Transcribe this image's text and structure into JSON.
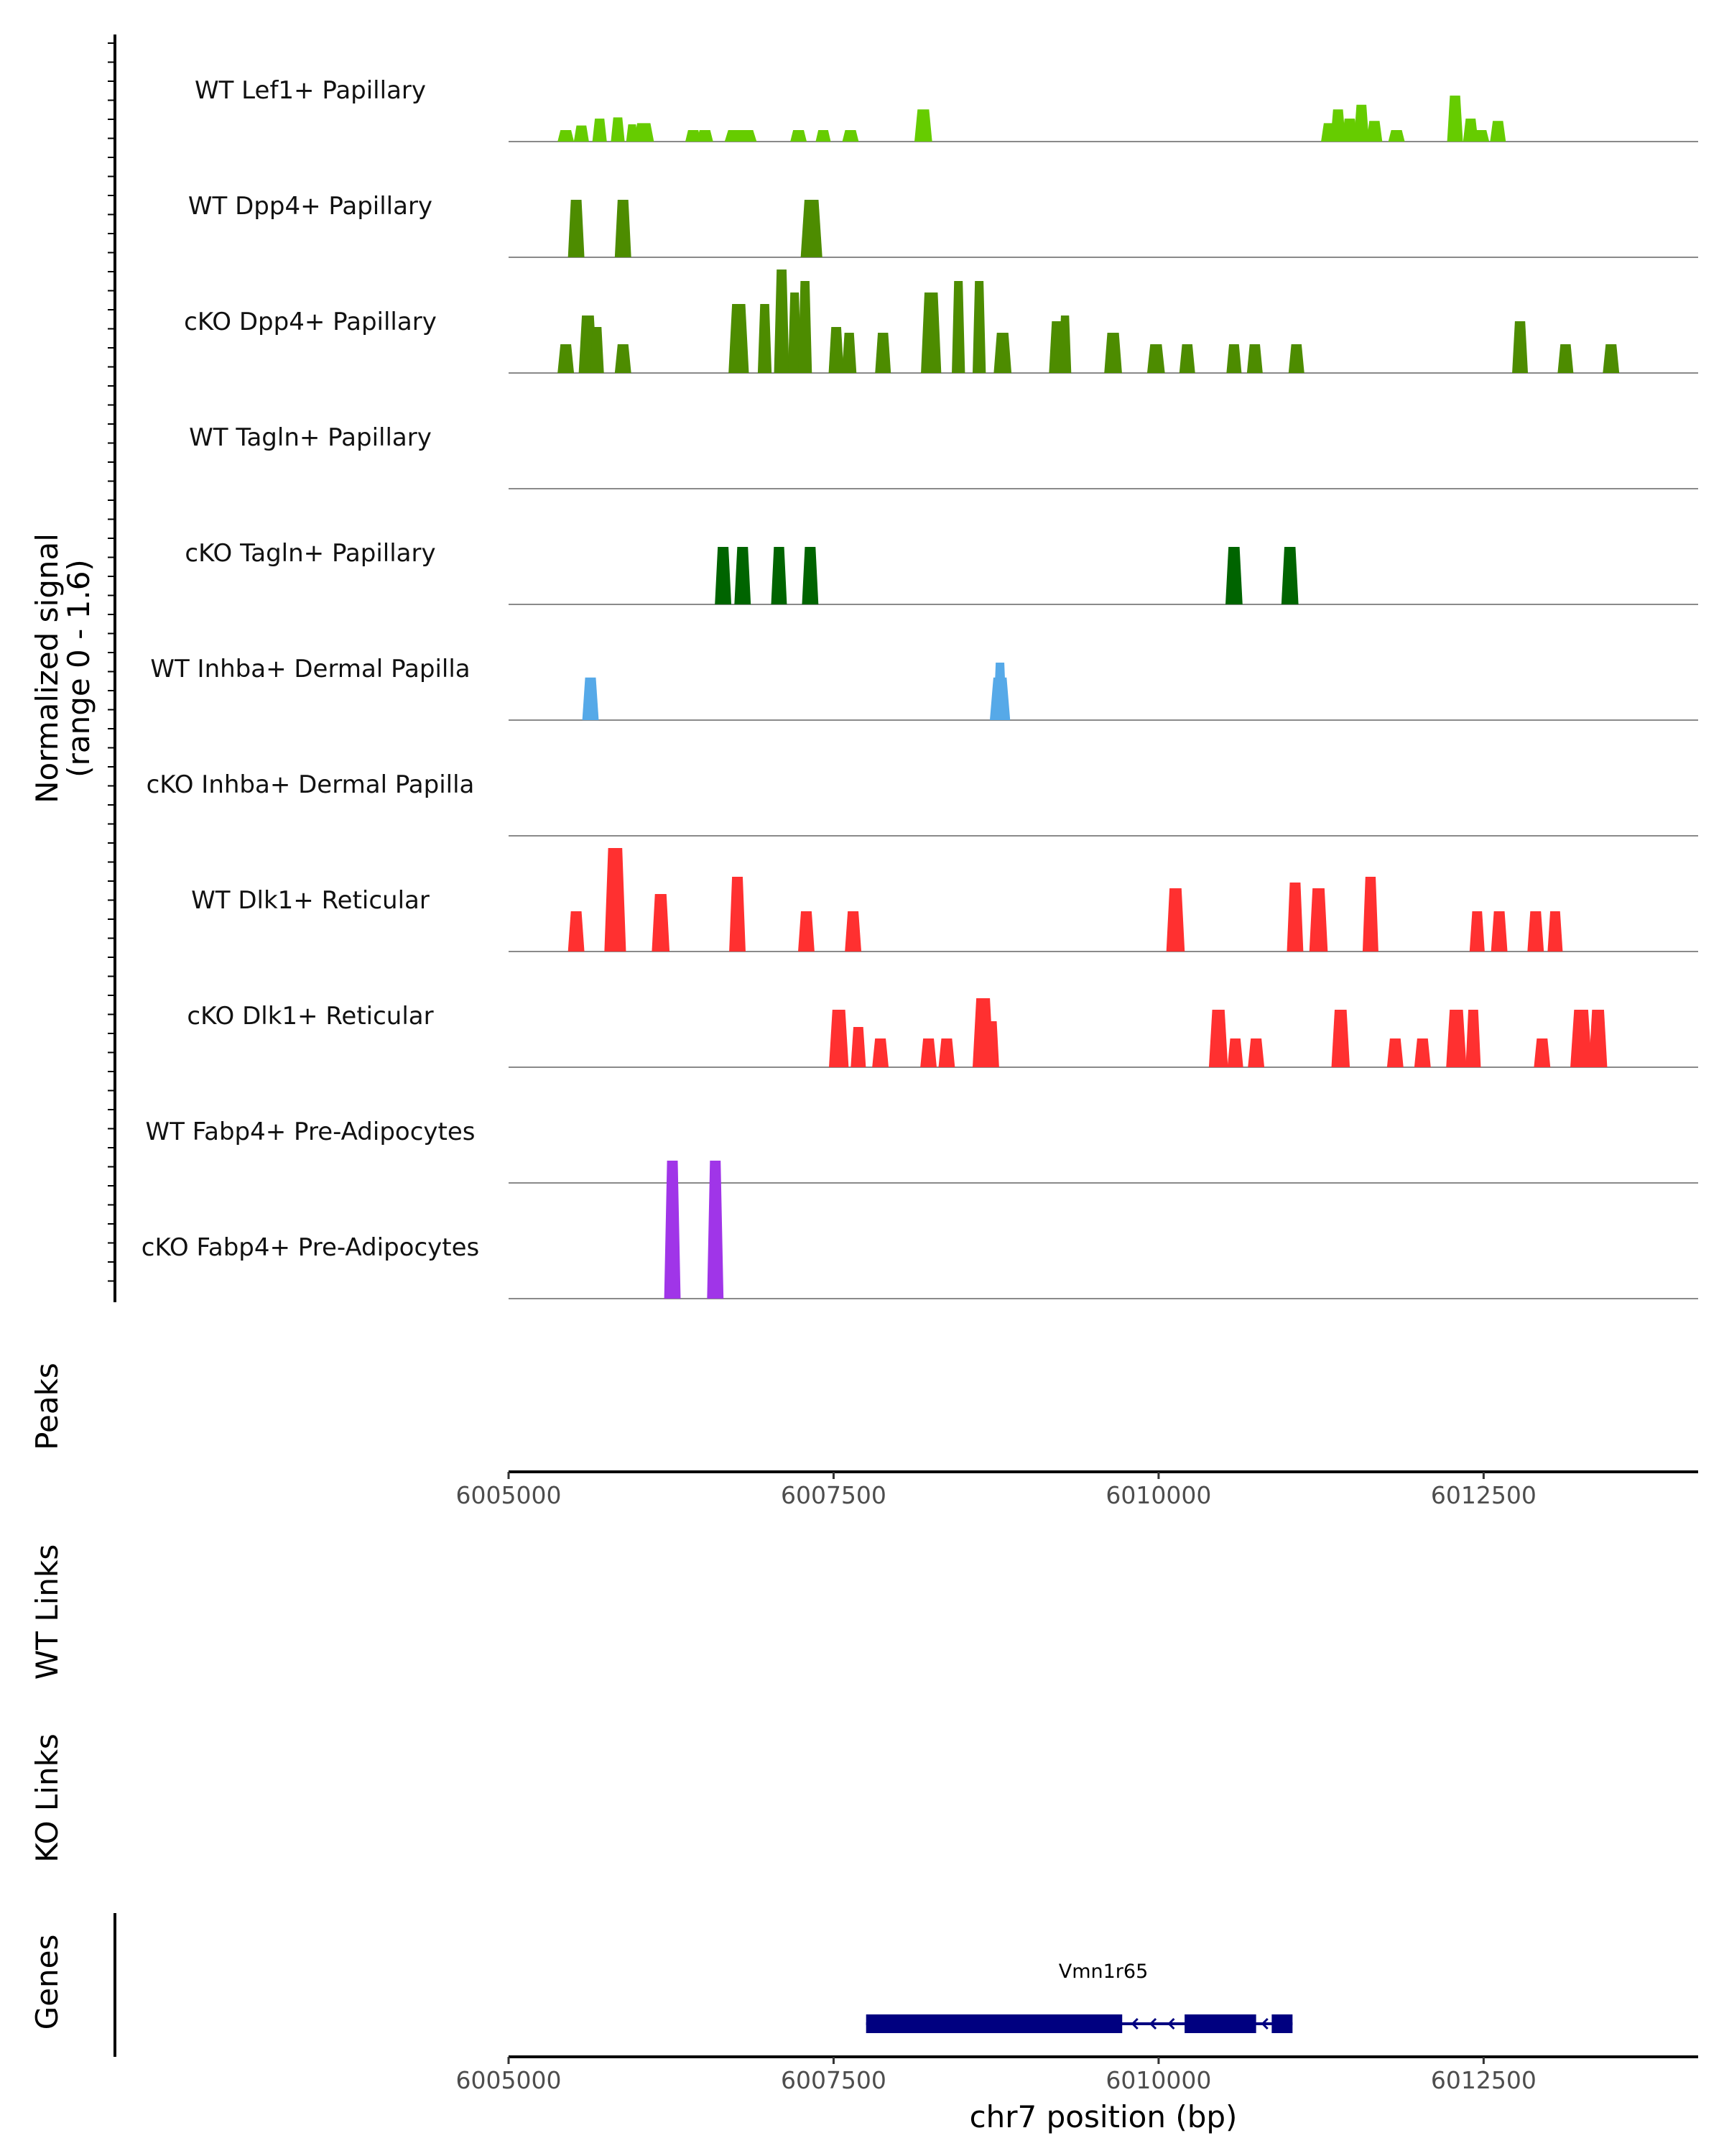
{
  "chart_data": {
    "type": "area",
    "title": "",
    "y_axis_label_line1": "Normalized signal",
    "y_axis_label_line2": "(range 0 - 1.6)",
    "y_range": [
      0,
      1.6
    ],
    "xlabel": "chr7 position (bp)",
    "x_range": [
      6005000,
      6014150
    ],
    "x_ticks": [
      6005000,
      6007500,
      6010000,
      6012500
    ],
    "x_tick_labels": [
      "6005000",
      "6007500",
      "6010000",
      "6012500"
    ],
    "panel_labels": {
      "peaks": "Peaks",
      "wt_links": "WT Links",
      "ko_links": "KO Links",
      "genes": "Genes"
    },
    "gene": {
      "name": "Vmn1r65",
      "color": "#000080",
      "strand": "-",
      "exons": [
        [
          6007750,
          6009720
        ],
        [
          6010200,
          6010750
        ],
        [
          6010870,
          6011030
        ]
      ],
      "intron_arrows": [
        6009800,
        6009940,
        6010080,
        6010800
      ]
    },
    "series": [
      {
        "name": "WT Lef1+ Papillary",
        "color": "#66CC00",
        "peaks": [
          [
            6005440,
            0.6,
            0.1
          ],
          [
            6005560,
            0.5,
            0.14
          ],
          [
            6005700,
            0.45,
            0.2
          ],
          [
            6005840,
            0.4,
            0.21
          ],
          [
            6005950,
            0.25,
            0.15
          ],
          [
            6006040,
            0.9,
            0.16
          ],
          [
            6006420,
            0.55,
            0.1
          ],
          [
            6006510,
            0.6,
            0.1
          ],
          [
            6006740,
            0.9,
            0.1
          ],
          [
            6006830,
            0.9,
            0.1
          ],
          [
            6007230,
            0.6,
            0.1
          ],
          [
            6007420,
            0.5,
            0.1
          ],
          [
            6007630,
            0.6,
            0.1
          ],
          [
            6008190,
            0.7,
            0.28
          ],
          [
            6011310,
            0.55,
            0.16
          ],
          [
            6011380,
            0.5,
            0.28
          ],
          [
            6011470,
            0.55,
            0.2
          ],
          [
            6011560,
            0.5,
            0.32
          ],
          [
            6011660,
            0.55,
            0.18
          ],
          [
            6011830,
            0.6,
            0.1
          ],
          [
            6012280,
            0.55,
            0.4
          ],
          [
            6012400,
            0.5,
            0.2
          ],
          [
            6012480,
            0.6,
            0.1
          ],
          [
            6012610,
            0.55,
            0.18
          ]
        ]
      },
      {
        "name": "WT Dpp4+ Papillary",
        "color": "#4D8C00",
        "peaks": [
          [
            6005520,
            0.6,
            0.5
          ],
          [
            6005880,
            0.6,
            0.5
          ],
          [
            6007330,
            1.0,
            0.5
          ]
        ]
      },
      {
        "name": "cKO Dpp4+ Papillary",
        "color": "#4D8C00",
        "peaks": [
          [
            6005440,
            0.6,
            0.25
          ],
          [
            6005610,
            0.75,
            0.5
          ],
          [
            6005680,
            0.4,
            0.4
          ],
          [
            6005880,
            0.6,
            0.25
          ],
          [
            6006770,
            0.9,
            0.6
          ],
          [
            6006970,
            0.4,
            0.6
          ],
          [
            6007100,
            0.5,
            0.9
          ],
          [
            6007200,
            0.35,
            0.7
          ],
          [
            6007280,
            0.4,
            0.8
          ],
          [
            6007520,
            0.5,
            0.4
          ],
          [
            6007620,
            0.45,
            0.35
          ],
          [
            6007880,
            0.55,
            0.35
          ],
          [
            6008250,
            0.9,
            0.7
          ],
          [
            6008460,
            0.35,
            0.8
          ],
          [
            6008620,
            0.35,
            0.8
          ],
          [
            6008800,
            0.7,
            0.35
          ],
          [
            6009220,
            0.6,
            0.45
          ],
          [
            6009280,
            0.3,
            0.5
          ],
          [
            6009650,
            0.7,
            0.35
          ],
          [
            6009980,
            0.7,
            0.25
          ],
          [
            6010220,
            0.55,
            0.25
          ],
          [
            6010580,
            0.5,
            0.25
          ],
          [
            6010740,
            0.55,
            0.25
          ],
          [
            6011060,
            0.55,
            0.25
          ],
          [
            6012780,
            0.55,
            0.45
          ],
          [
            6013130,
            0.55,
            0.25
          ],
          [
            6013480,
            0.6,
            0.25
          ]
        ]
      },
      {
        "name": "WT Tagln+ Papillary",
        "color": "#006400",
        "peaks": []
      },
      {
        "name": "cKO Tagln+ Papillary",
        "color": "#006400",
        "peaks": [
          [
            6006650,
            0.6,
            0.5
          ],
          [
            6006800,
            0.6,
            0.5
          ],
          [
            6007080,
            0.55,
            0.5
          ],
          [
            6007320,
            0.6,
            0.5
          ],
          [
            6010580,
            0.65,
            0.5
          ],
          [
            6011010,
            0.65,
            0.5
          ]
        ]
      },
      {
        "name": "WT Inhba+ Dermal Papilla",
        "color": "#56A9E8",
        "peaks": [
          [
            6005630,
            0.6,
            0.37
          ],
          [
            6008780,
            0.9,
            0.37
          ],
          [
            6008780,
            0.35,
            0.5
          ]
        ]
      },
      {
        "name": "cKO Inhba+ Dermal Papilla",
        "color": "#56A9E8",
        "peaks": []
      },
      {
        "name": "WT Dlk1+ Reticular",
        "color": "#FF3030",
        "peaks": [
          [
            6005520,
            0.6,
            0.35
          ],
          [
            6005820,
            1.0,
            0.9
          ],
          [
            6005840,
            0.35,
            0.8
          ],
          [
            6006170,
            0.7,
            0.5
          ],
          [
            6006760,
            0.6,
            0.65
          ],
          [
            6007290,
            0.6,
            0.35
          ],
          [
            6007650,
            0.6,
            0.35
          ],
          [
            6010130,
            0.75,
            0.55
          ],
          [
            6011050,
            0.6,
            0.6
          ],
          [
            6011230,
            0.75,
            0.55
          ],
          [
            6011630,
            0.55,
            0.65
          ],
          [
            6012450,
            0.5,
            0.35
          ],
          [
            6012620,
            0.6,
            0.35
          ],
          [
            6012900,
            0.6,
            0.35
          ],
          [
            6013050,
            0.5,
            0.35
          ]
        ]
      },
      {
        "name": "cKO Dlk1+ Reticular",
        "color": "#FF3030",
        "peaks": [
          [
            6007540,
            0.85,
            0.5
          ],
          [
            6007690,
            0.5,
            0.35
          ],
          [
            6007860,
            0.6,
            0.25
          ],
          [
            6008230,
            0.6,
            0.25
          ],
          [
            6008370,
            0.6,
            0.25
          ],
          [
            6008650,
            0.95,
            0.6
          ],
          [
            6008720,
            0.4,
            0.4
          ],
          [
            6010460,
            0.8,
            0.5
          ],
          [
            6010590,
            0.55,
            0.25
          ],
          [
            6010750,
            0.6,
            0.25
          ],
          [
            6011400,
            0.75,
            0.5
          ],
          [
            6011820,
            0.6,
            0.25
          ],
          [
            6012030,
            0.6,
            0.25
          ],
          [
            6012290,
            0.9,
            0.5
          ],
          [
            6012420,
            0.5,
            0.5
          ],
          [
            6012950,
            0.6,
            0.25
          ],
          [
            6013250,
            1.0,
            0.5
          ],
          [
            6013380,
            0.75,
            0.5
          ]
        ]
      },
      {
        "name": "WT Fabp4+ Pre-Adipocytes",
        "color": "#A035E8",
        "peaks": []
      },
      {
        "name": "cKO Fabp4+ Pre-Adipocytes",
        "color": "#A035E8",
        "peaks": [
          [
            6006260,
            0.6,
            1.2
          ],
          [
            6006590,
            0.6,
            1.2
          ]
        ]
      }
    ]
  }
}
